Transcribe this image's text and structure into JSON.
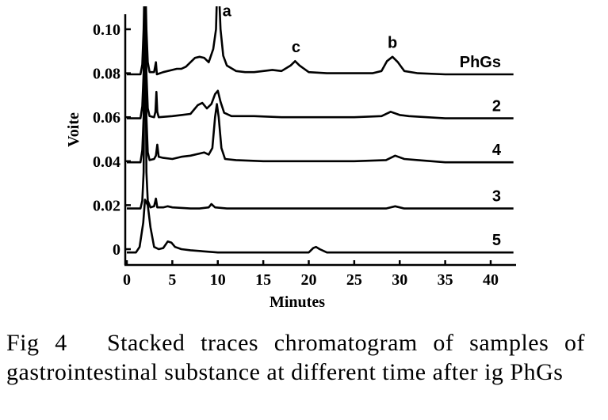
{
  "chart_data": {
    "type": "line",
    "xlabel": "Minutes",
    "ylabel": "Voite",
    "xlim": [
      0,
      43
    ],
    "ylim": [
      -0.005,
      0.107
    ],
    "x_ticks": [
      0,
      5,
      10,
      15,
      20,
      25,
      30,
      35,
      40
    ],
    "y_ticks": [
      {
        "value": 0.1,
        "label": "0.10"
      },
      {
        "value": 0.08,
        "label": "0.08"
      },
      {
        "value": 0.06,
        "label": "0.06"
      },
      {
        "value": 0.04,
        "label": "0.04"
      },
      {
        "value": 0.02,
        "label": "0.02"
      },
      {
        "value": 0.0,
        "label": "0"
      }
    ],
    "series": [
      {
        "name": "PhGs",
        "baseline": 0.0795,
        "points": [
          [
            0,
            0.0795
          ],
          [
            1.5,
            0.0795
          ],
          [
            1.7,
            0.084
          ],
          [
            1.85,
            0.1
          ],
          [
            2.0,
            0.13
          ],
          [
            2.15,
            0.1
          ],
          [
            2.3,
            0.085
          ],
          [
            2.5,
            0.0805
          ],
          [
            3.0,
            0.0805
          ],
          [
            3.2,
            0.085
          ],
          [
            3.3,
            0.0795
          ],
          [
            4.0,
            0.0805
          ],
          [
            5.0,
            0.0815
          ],
          [
            5.5,
            0.082
          ],
          [
            6.0,
            0.082
          ],
          [
            6.5,
            0.083
          ],
          [
            7.0,
            0.085
          ],
          [
            7.5,
            0.087
          ],
          [
            8.0,
            0.0875
          ],
          [
            8.5,
            0.087
          ],
          [
            9.0,
            0.085
          ],
          [
            9.5,
            0.091
          ],
          [
            9.8,
            0.1
          ],
          [
            10.0,
            0.13
          ],
          [
            10.3,
            0.1
          ],
          [
            10.6,
            0.088
          ],
          [
            11.0,
            0.0835
          ],
          [
            12.0,
            0.081
          ],
          [
            13.0,
            0.0805
          ],
          [
            14.0,
            0.0805
          ],
          [
            15.0,
            0.081
          ],
          [
            16.0,
            0.0815
          ],
          [
            17.0,
            0.081
          ],
          [
            18.0,
            0.0835
          ],
          [
            18.5,
            0.0855
          ],
          [
            19.0,
            0.0835
          ],
          [
            20.0,
            0.0805
          ],
          [
            22.0,
            0.08
          ],
          [
            25.0,
            0.08
          ],
          [
            27.0,
            0.08
          ],
          [
            28.0,
            0.081
          ],
          [
            28.6,
            0.0855
          ],
          [
            29.2,
            0.0875
          ],
          [
            29.8,
            0.085
          ],
          [
            30.5,
            0.081
          ],
          [
            32.0,
            0.08
          ],
          [
            35.0,
            0.0795
          ],
          [
            40.0,
            0.0795
          ],
          [
            42.5,
            0.0795
          ]
        ]
      },
      {
        "name": "2",
        "baseline": 0.0595,
        "points": [
          [
            0,
            0.0595
          ],
          [
            1.5,
            0.0595
          ],
          [
            1.7,
            0.065
          ],
          [
            1.85,
            0.08
          ],
          [
            2.0,
            0.13
          ],
          [
            2.15,
            0.08
          ],
          [
            2.3,
            0.064
          ],
          [
            2.5,
            0.0605
          ],
          [
            3.0,
            0.06
          ],
          [
            3.15,
            0.0625
          ],
          [
            3.25,
            0.0715
          ],
          [
            3.35,
            0.0625
          ],
          [
            3.5,
            0.06
          ],
          [
            5.0,
            0.0605
          ],
          [
            6.0,
            0.061
          ],
          [
            7.0,
            0.0615
          ],
          [
            7.8,
            0.0655
          ],
          [
            8.3,
            0.0665
          ],
          [
            8.8,
            0.064
          ],
          [
            9.3,
            0.066
          ],
          [
            9.7,
            0.0705
          ],
          [
            10.0,
            0.072
          ],
          [
            10.3,
            0.067
          ],
          [
            10.7,
            0.062
          ],
          [
            11.5,
            0.0605
          ],
          [
            14.0,
            0.0605
          ],
          [
            17.0,
            0.06
          ],
          [
            20.0,
            0.06
          ],
          [
            25.0,
            0.06
          ],
          [
            28.0,
            0.0605
          ],
          [
            29.0,
            0.0625
          ],
          [
            30.0,
            0.061
          ],
          [
            31.0,
            0.0605
          ],
          [
            35.0,
            0.0595
          ],
          [
            40.0,
            0.0595
          ],
          [
            42.5,
            0.0595
          ]
        ]
      },
      {
        "name": "4",
        "baseline": 0.0395,
        "points": [
          [
            0,
            0.0395
          ],
          [
            1.5,
            0.0395
          ],
          [
            1.7,
            0.045
          ],
          [
            1.85,
            0.06
          ],
          [
            2.0,
            0.13
          ],
          [
            2.15,
            0.06
          ],
          [
            2.3,
            0.044
          ],
          [
            2.5,
            0.0405
          ],
          [
            3.0,
            0.041
          ],
          [
            3.2,
            0.0425
          ],
          [
            3.35,
            0.0475
          ],
          [
            3.5,
            0.042
          ],
          [
            4.0,
            0.0415
          ],
          [
            5.0,
            0.041
          ],
          [
            6.0,
            0.042
          ],
          [
            7.0,
            0.0425
          ],
          [
            8.0,
            0.0435
          ],
          [
            8.5,
            0.044
          ],
          [
            9.0,
            0.043
          ],
          [
            9.4,
            0.046
          ],
          [
            9.7,
            0.06
          ],
          [
            9.9,
            0.066
          ],
          [
            10.1,
            0.06
          ],
          [
            10.4,
            0.046
          ],
          [
            10.8,
            0.041
          ],
          [
            12.0,
            0.0405
          ],
          [
            15.0,
            0.04
          ],
          [
            20.0,
            0.04
          ],
          [
            25.0,
            0.04
          ],
          [
            28.5,
            0.0405
          ],
          [
            29.5,
            0.0425
          ],
          [
            30.5,
            0.041
          ],
          [
            32.0,
            0.0405
          ],
          [
            35.0,
            0.0395
          ],
          [
            40.0,
            0.0395
          ],
          [
            42.5,
            0.0395
          ]
        ]
      },
      {
        "name": "3",
        "baseline": 0.0185,
        "points": [
          [
            0,
            0.0185
          ],
          [
            1.5,
            0.0185
          ],
          [
            1.7,
            0.022
          ],
          [
            1.85,
            0.035
          ],
          [
            2.0,
            0.13
          ],
          [
            2.15,
            0.035
          ],
          [
            2.3,
            0.022
          ],
          [
            2.6,
            0.019
          ],
          [
            3.0,
            0.0195
          ],
          [
            3.2,
            0.023
          ],
          [
            3.35,
            0.019
          ],
          [
            4.0,
            0.019
          ],
          [
            4.5,
            0.0195
          ],
          [
            5.0,
            0.019
          ],
          [
            7.0,
            0.0185
          ],
          [
            8.0,
            0.0185
          ],
          [
            9.0,
            0.019
          ],
          [
            9.3,
            0.0205
          ],
          [
            9.7,
            0.019
          ],
          [
            11.0,
            0.0185
          ],
          [
            15.0,
            0.0185
          ],
          [
            20.0,
            0.0185
          ],
          [
            25.0,
            0.0185
          ],
          [
            28.5,
            0.0185
          ],
          [
            29.5,
            0.0195
          ],
          [
            30.5,
            0.0185
          ],
          [
            35.0,
            0.0185
          ],
          [
            40.0,
            0.0185
          ],
          [
            42.5,
            0.0185
          ]
        ]
      },
      {
        "name": "5",
        "baseline": -0.0015,
        "points": [
          [
            0,
            -0.0015
          ],
          [
            1.0,
            -0.0015
          ],
          [
            1.4,
            0.001
          ],
          [
            1.8,
            0.012
          ],
          [
            2.0,
            0.0225
          ],
          [
            2.3,
            0.02
          ],
          [
            2.6,
            0.01
          ],
          [
            3.0,
            0.001
          ],
          [
            3.5,
            0.0
          ],
          [
            4.0,
            0.0005
          ],
          [
            4.5,
            0.0035
          ],
          [
            4.9,
            0.003
          ],
          [
            5.3,
            0.001
          ],
          [
            6.0,
            0.0
          ],
          [
            7.0,
            -0.0005
          ],
          [
            10.0,
            -0.0015
          ],
          [
            14.0,
            -0.0015
          ],
          [
            18.0,
            -0.0015
          ],
          [
            20.0,
            -0.0015
          ],
          [
            20.5,
            0.0005
          ],
          [
            20.8,
            0.001
          ],
          [
            21.2,
            0.0
          ],
          [
            22.0,
            -0.0015
          ],
          [
            25.0,
            -0.0015
          ],
          [
            30.0,
            -0.0015
          ],
          [
            35.0,
            -0.0015
          ],
          [
            40.0,
            -0.0015
          ],
          [
            42.5,
            -0.0015
          ]
        ]
      }
    ],
    "peak_labels": [
      {
        "text": "a",
        "x": 11.0,
        "y": 0.106
      },
      {
        "text": "c",
        "x": 18.6,
        "y": 0.0895
      },
      {
        "text": "b",
        "x": 29.2,
        "y": 0.0915
      }
    ]
  },
  "caption": "Fig 4  Stacked traces chromatogram of samples of gastrointestinal substance at different time after ig PhGs"
}
